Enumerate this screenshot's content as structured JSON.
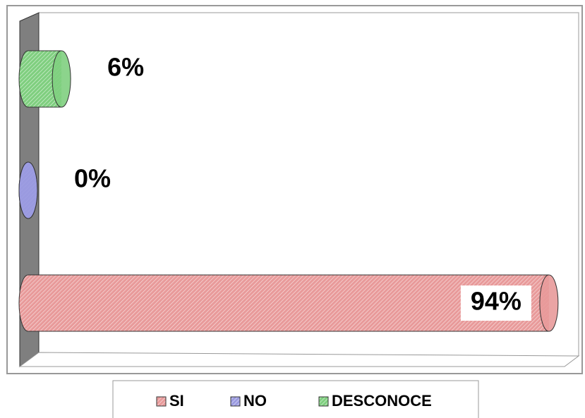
{
  "chart_data": {
    "type": "bar",
    "orientation": "horizontal",
    "series": [
      {
        "name": "SI",
        "color": "#e89a9a",
        "values": [
          94
        ],
        "value_labels": [
          "94%"
        ]
      },
      {
        "name": "NO",
        "color": "#9a9ae0",
        "values": [
          0
        ],
        "value_labels": [
          "0%"
        ]
      },
      {
        "name": "DESCONOCE",
        "color": "#7fcf7f",
        "values": [
          6
        ],
        "value_labels": [
          "6%"
        ]
      }
    ],
    "xlim": [
      0,
      100
    ],
    "legend": "bottom"
  }
}
